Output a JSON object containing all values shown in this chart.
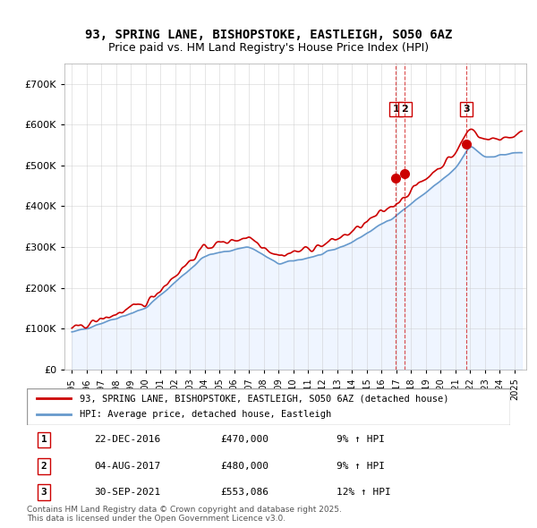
{
  "title": "93, SPRING LANE, BISHOPSTOKE, EASTLEIGH, SO50 6AZ",
  "subtitle": "Price paid vs. HM Land Registry's House Price Index (HPI)",
  "legend_line1": "93, SPRING LANE, BISHOPSTOKE, EASTLEIGH, SO50 6AZ (detached house)",
  "legend_line2": "HPI: Average price, detached house, Eastleigh",
  "annotation1_label": "1",
  "annotation1_date": "22-DEC-2016",
  "annotation1_price": "£470,000",
  "annotation1_hpi": "9% ↑ HPI",
  "annotation2_label": "2",
  "annotation2_date": "04-AUG-2017",
  "annotation2_price": "£480,000",
  "annotation2_hpi": "9% ↑ HPI",
  "annotation3_label": "3",
  "annotation3_date": "30-SEP-2021",
  "annotation3_price": "£553,086",
  "annotation3_hpi": "12% ↑ HPI",
  "footer": "Contains HM Land Registry data © Crown copyright and database right 2025.\nThis data is licensed under the Open Government Licence v3.0.",
  "price_color": "#cc0000",
  "hpi_color": "#6699cc",
  "hpi_fill_color": "#cce0ff",
  "vline_color": "#cc0000",
  "ylim": [
    0,
    750000
  ],
  "yticks": [
    0,
    100000,
    200000,
    300000,
    400000,
    500000,
    600000,
    700000
  ],
  "ytick_labels": [
    "£0",
    "£100K",
    "£200K",
    "£300K",
    "£400K",
    "£500K",
    "£600K",
    "£700K"
  ],
  "sale1_year": 2016.97,
  "sale2_year": 2017.58,
  "sale3_year": 2021.75,
  "sale1_price": 470000,
  "sale2_price": 480000,
  "sale3_price": 553086,
  "marker_size": 7,
  "background_color": "#ffffff",
  "grid_color": "#cccccc"
}
